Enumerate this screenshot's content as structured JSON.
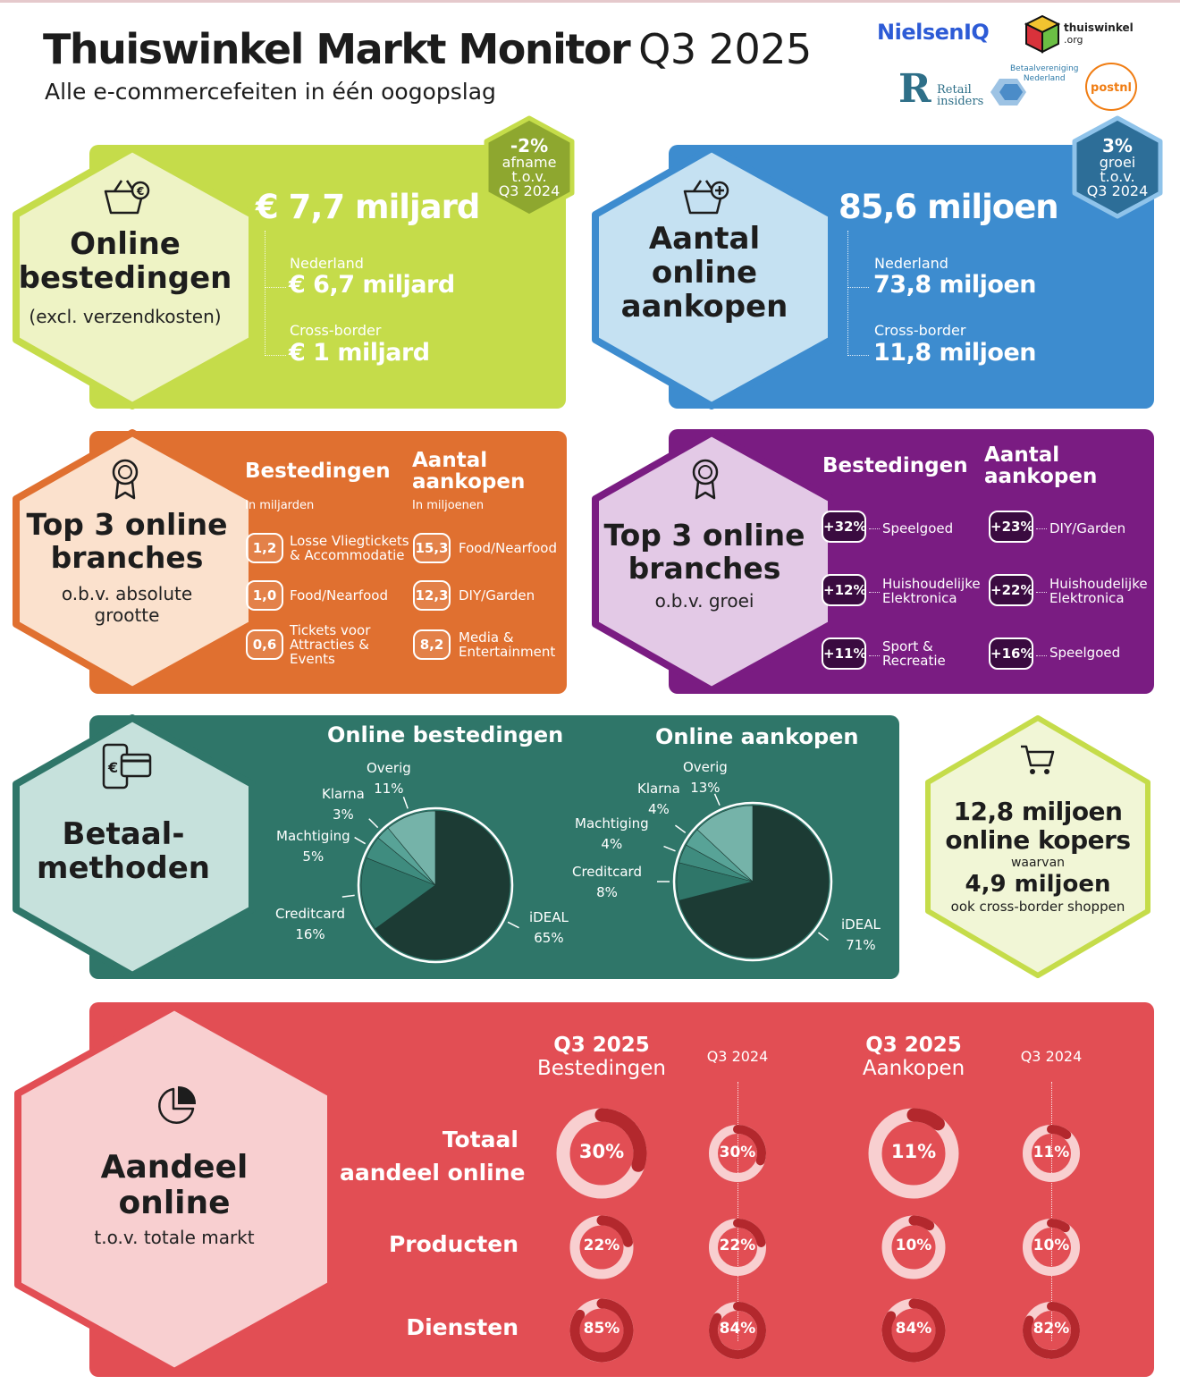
{
  "header": {
    "title": "Thuiswinkel Markt Monitor",
    "quarter": "Q3 2025",
    "subtitle": "Alle e-commercefeiten in één oogopslag"
  },
  "logos": {
    "nielsen": "NielsenIQ",
    "thuiswinkel": "thuiswinkel",
    "thuiswinkel_org": ".org",
    "retail_1": "Retail",
    "retail_2": "insiders",
    "betaal_1": "Betaalvereniging",
    "betaal_2": "Nederland",
    "postnl": "postnl"
  },
  "spend": {
    "title_1": "Online",
    "title_2": "bestedingen",
    "sub": "(excl. verzendkosten)",
    "total": "€ 7,7 miljard",
    "nl_label": "Nederland",
    "nl_value": "€ 6,7 miljard",
    "cb_label": "Cross-border",
    "cb_value": "€ 1 miljard",
    "badge_value": "-2%",
    "badge_1": "afname",
    "badge_2": "t.o.v.",
    "badge_3": "Q3 2024",
    "color": "#c5dc4a"
  },
  "purchases": {
    "title_1": "Aantal",
    "title_2": "online",
    "title_3": "aankopen",
    "total": "85,6 miljoen",
    "nl_label": "Nederland",
    "nl_value": "73,8 miljoen",
    "cb_label": "Cross-border",
    "cb_value": "11,8 miljoen",
    "badge_value": "3%",
    "badge_1": "groei",
    "badge_2": "t.o.v.",
    "badge_3": "Q3 2024",
    "color": "#3d8ccf"
  },
  "top3_abs": {
    "title_1": "Top 3 online",
    "title_2": "branches",
    "sub_1": "o.b.v. absolute",
    "sub_2": "grootte",
    "col1_head": "Bestedingen",
    "col1_sub": "In miljarden",
    "col2_head_1": "Aantal",
    "col2_head_2": "aankopen",
    "col2_sub": "In miljoenen",
    "col1": [
      {
        "value": "1,2",
        "l1": "Losse Vliegtickets",
        "l2": "& Accommodatie",
        "l3": ""
      },
      {
        "value": "1,0",
        "l1": "Food/Nearfood",
        "l2": "",
        "l3": ""
      },
      {
        "value": "0,6",
        "l1": "Tickets voor",
        "l2": "Attracties &",
        "l3": "Events"
      }
    ],
    "col2": [
      {
        "value": "15,3",
        "l1": "Food/Nearfood",
        "l2": ""
      },
      {
        "value": "12,3",
        "l1": "DIY/Garden",
        "l2": ""
      },
      {
        "value": "8,2",
        "l1": "Media &",
        "l2": "Entertainment"
      }
    ],
    "color": "#e07030"
  },
  "top3_growth": {
    "title_1": "Top 3 online",
    "title_2": "branches",
    "sub": "o.b.v. groei",
    "col1_head": "Bestedingen",
    "col2_head_1": "Aantal",
    "col2_head_2": "aankopen",
    "col1": [
      {
        "value": "+32%",
        "l1": "Speelgoed",
        "l2": ""
      },
      {
        "value": "+12%",
        "l1": "Huishoudelijke",
        "l2": "Elektronica"
      },
      {
        "value": "+11%",
        "l1": "Sport &",
        "l2": "Recreatie"
      }
    ],
    "col2": [
      {
        "value": "+23%",
        "l1": "DIY/Garden",
        "l2": ""
      },
      {
        "value": "+22%",
        "l1": "Huishoudelijke",
        "l2": "Elektronica"
      },
      {
        "value": "+16%",
        "l1": "Speelgoed",
        "l2": ""
      }
    ],
    "color": "#7a1c82"
  },
  "payments": {
    "title_1": "Betaal-",
    "title_2": "methoden",
    "color": "#2f7669",
    "pies": [
      {
        "title": "Online bestedingen",
        "slices": [
          {
            "name": "iDEAL",
            "value": 65,
            "label": "65%",
            "color": "#1c3b34"
          },
          {
            "name": "Creditcard",
            "value": 16,
            "label": "16%",
            "color": "#2f7669"
          },
          {
            "name": "Machtiging",
            "value": 5,
            "label": "5%",
            "color": "#3f8c7f"
          },
          {
            "name": "Klarna",
            "value": 3,
            "label": "3%",
            "color": "#58a397"
          },
          {
            "name": "Overig",
            "value": 11,
            "label": "11%",
            "color": "#75b3a9"
          }
        ]
      },
      {
        "title": "Online aankopen",
        "slices": [
          {
            "name": "iDEAL",
            "value": 71,
            "label": "71%",
            "color": "#1c3b34"
          },
          {
            "name": "Creditcard",
            "value": 8,
            "label": "8%",
            "color": "#2f7669"
          },
          {
            "name": "Machtiging",
            "value": 4,
            "label": "4%",
            "color": "#3f8c7f"
          },
          {
            "name": "Klarna",
            "value": 4,
            "label": "4%",
            "color": "#58a397"
          },
          {
            "name": "Overig",
            "value": 13,
            "label": "13%",
            "color": "#75b3a9"
          }
        ]
      }
    ]
  },
  "buyers": {
    "line_1": "12,8 miljoen",
    "line_2": "online kopers",
    "line_3": "waarvan",
    "line_4": "4,9 miljoen",
    "line_5": "ook cross-border shoppen"
  },
  "share": {
    "title_1": "Aandeel",
    "title_2": "online",
    "sub": "t.o.v. totale markt",
    "color": "#e24e54",
    "col_headers": [
      {
        "l1": "Q3 2025",
        "l2": "Bestedingen"
      },
      {
        "l1": "Q3 2024",
        "l2": ""
      },
      {
        "l1": "Q3 2025",
        "l2": "Aankopen"
      },
      {
        "l1": "Q3 2024",
        "l2": ""
      }
    ],
    "rows": [
      {
        "label_1": "Totaal",
        "label_2": "aandeel online",
        "values": [
          30,
          30,
          11,
          11
        ],
        "labels": [
          "30%",
          "30%",
          "11%",
          "11%"
        ]
      },
      {
        "label_1": "Producten",
        "label_2": "",
        "values": [
          22,
          22,
          10,
          10
        ],
        "labels": [
          "22%",
          "22%",
          "10%",
          "10%"
        ]
      },
      {
        "label_1": "Diensten",
        "label_2": "",
        "values": [
          85,
          84,
          84,
          82
        ],
        "labels": [
          "85%",
          "84%",
          "84%",
          "82%"
        ]
      }
    ]
  }
}
